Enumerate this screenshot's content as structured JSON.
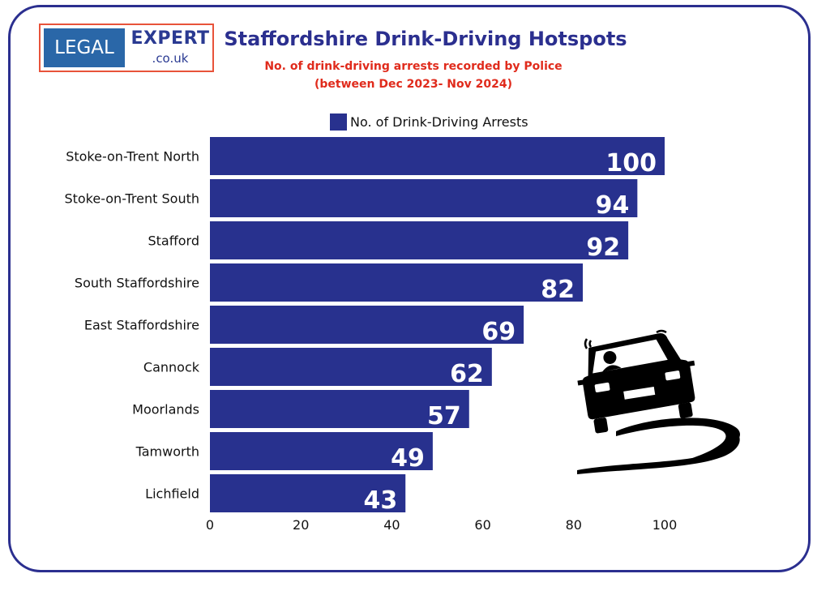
{
  "logo": {
    "left_text": "LEGAL",
    "right_text": "EXPERT",
    "domain_text": ".co.uk"
  },
  "colors": {
    "bar": "#28318e",
    "title": "#2b2f8f",
    "subtitle": "#e02b1c",
    "frame": "#2b2f8f"
  },
  "icon": "skidding-car-icon",
  "chart_data": {
    "type": "bar",
    "orientation": "horizontal",
    "title": "Staffordshire Drink-Driving Hotspots",
    "subtitle": [
      "No. of drink-driving arrests recorded by Police",
      "(between Dec 2023- Nov 2024)"
    ],
    "categories": [
      "Stoke-on-Trent North",
      "Stoke-on-Trent South",
      "Stafford",
      "South Staffordshire",
      "East Staffordshire",
      "Cannock",
      "Moorlands",
      "Tamworth",
      "Lichfield"
    ],
    "series": [
      {
        "name": "No. of Drink-Driving Arrests",
        "values": [
          100,
          94,
          92,
          82,
          69,
          62,
          57,
          49,
          43
        ]
      }
    ],
    "xlim": [
      0,
      100
    ],
    "xticks": [
      0,
      20,
      40,
      60,
      80,
      100
    ],
    "grid": false,
    "legend_position": "top-center",
    "data_labels": true
  }
}
